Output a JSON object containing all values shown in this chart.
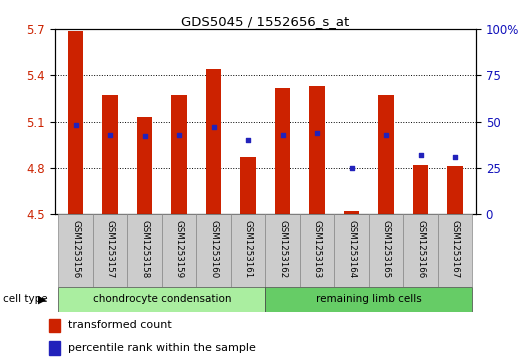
{
  "title": "GDS5045 / 1552656_s_at",
  "samples": [
    "GSM1253156",
    "GSM1253157",
    "GSM1253158",
    "GSM1253159",
    "GSM1253160",
    "GSM1253161",
    "GSM1253162",
    "GSM1253163",
    "GSM1253164",
    "GSM1253165",
    "GSM1253166",
    "GSM1253167"
  ],
  "bar_values": [
    5.69,
    5.27,
    5.13,
    5.27,
    5.44,
    4.87,
    5.32,
    5.33,
    4.52,
    5.27,
    4.82,
    4.81
  ],
  "percentile_values": [
    48,
    43,
    42,
    43,
    47,
    40,
    43,
    44,
    25,
    43,
    32,
    31
  ],
  "y_min": 4.5,
  "y_max": 5.7,
  "y_ticks": [
    4.5,
    4.8,
    5.1,
    5.4,
    5.7
  ],
  "y_right_ticks": [
    0,
    25,
    50,
    75,
    100
  ],
  "bar_color": "#cc2200",
  "dot_color": "#2222bb",
  "plot_bg_color": "#ffffff",
  "cell_types": [
    {
      "label": "chondrocyte condensation",
      "start": 0,
      "end": 6,
      "color": "#aaeea0"
    },
    {
      "label": "remaining limb cells",
      "start": 6,
      "end": 12,
      "color": "#66cc66"
    }
  ],
  "cell_type_label": "cell type",
  "legend_bar_label": "transformed count",
  "legend_dot_label": "percentile rank within the sample",
  "bar_width": 0.45
}
